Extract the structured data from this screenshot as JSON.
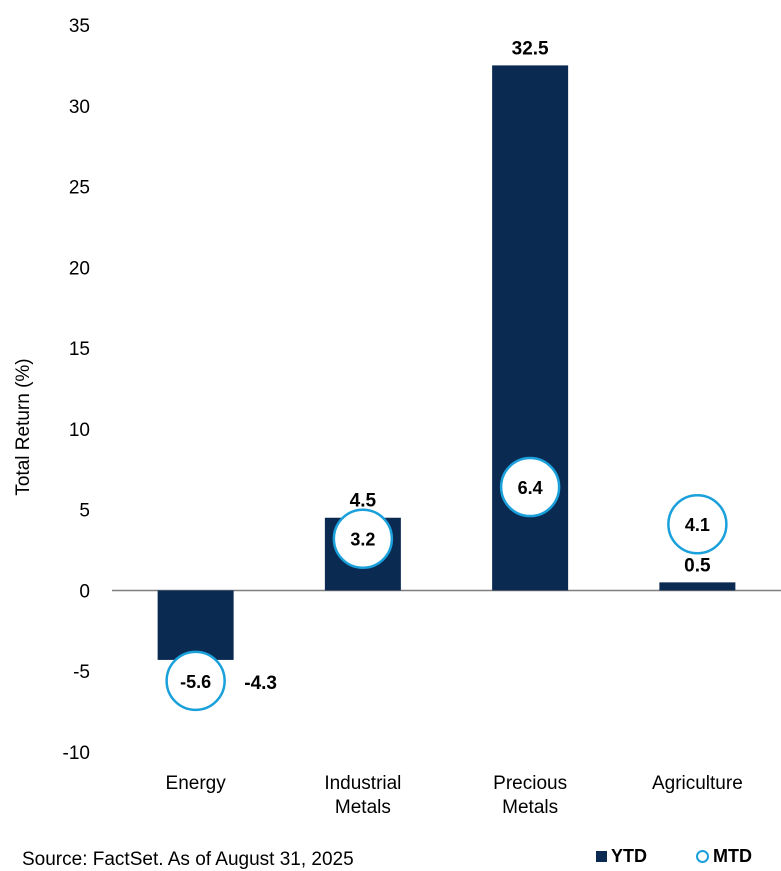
{
  "colors": {
    "ytd": "#0b2a52",
    "mtd": "#1aa0da",
    "axis": "#7f7f7f"
  },
  "chart_data": {
    "type": "bar",
    "categories": [
      "Energy",
      "Industrial Metals",
      "Precious Metals",
      "Agriculture"
    ],
    "category_lines": [
      [
        "Energy"
      ],
      [
        "Industrial",
        "Metals"
      ],
      [
        "Precious",
        "Metals"
      ],
      [
        "Agriculture"
      ]
    ],
    "series": [
      {
        "name": "YTD",
        "values": [
          -4.3,
          4.5,
          32.5,
          0.5
        ],
        "labels": [
          "-4.3",
          "4.5",
          "32.5",
          "0.5"
        ]
      },
      {
        "name": "MTD",
        "values": [
          -5.6,
          3.2,
          6.4,
          4.1
        ],
        "labels": [
          "-5.6",
          "3.2",
          "6.4",
          "4.1"
        ]
      }
    ],
    "ylabel": "Total Return (%)",
    "ylim": [
      -10,
      35
    ],
    "yticks": [
      -10,
      -5,
      0,
      5,
      10,
      15,
      20,
      25,
      30,
      35
    ],
    "legend_position": "bottom-right",
    "grid": false
  },
  "footer": {
    "source": "Source: FactSet. As of August 31, 2025"
  },
  "legend": {
    "ytd": "YTD",
    "mtd": "MTD"
  }
}
